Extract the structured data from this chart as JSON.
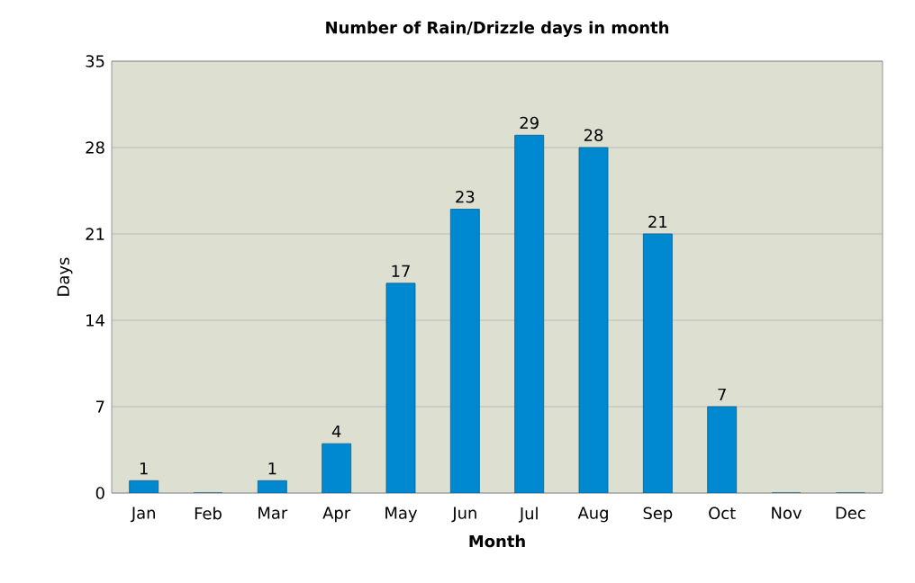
{
  "chart_data": {
    "type": "bar",
    "title": "Number of Rain/Drizzle days in month",
    "xlabel": "Month",
    "ylabel": "Days",
    "categories": [
      "Jan",
      "Feb",
      "Mar",
      "Apr",
      "May",
      "Jun",
      "Jul",
      "Aug",
      "Sep",
      "Oct",
      "Nov",
      "Dec"
    ],
    "values": [
      1,
      0,
      1,
      4,
      17,
      23,
      29,
      28,
      21,
      7,
      0,
      0
    ],
    "value_labels": [
      "1",
      null,
      "1",
      "4",
      "17",
      "23",
      "29",
      "28",
      "21",
      "7",
      null,
      null
    ],
    "color": "#0088d0",
    "ylim": [
      0,
      35
    ],
    "yticks": [
      0,
      7,
      14,
      21,
      28,
      35
    ],
    "grid": "y"
  }
}
